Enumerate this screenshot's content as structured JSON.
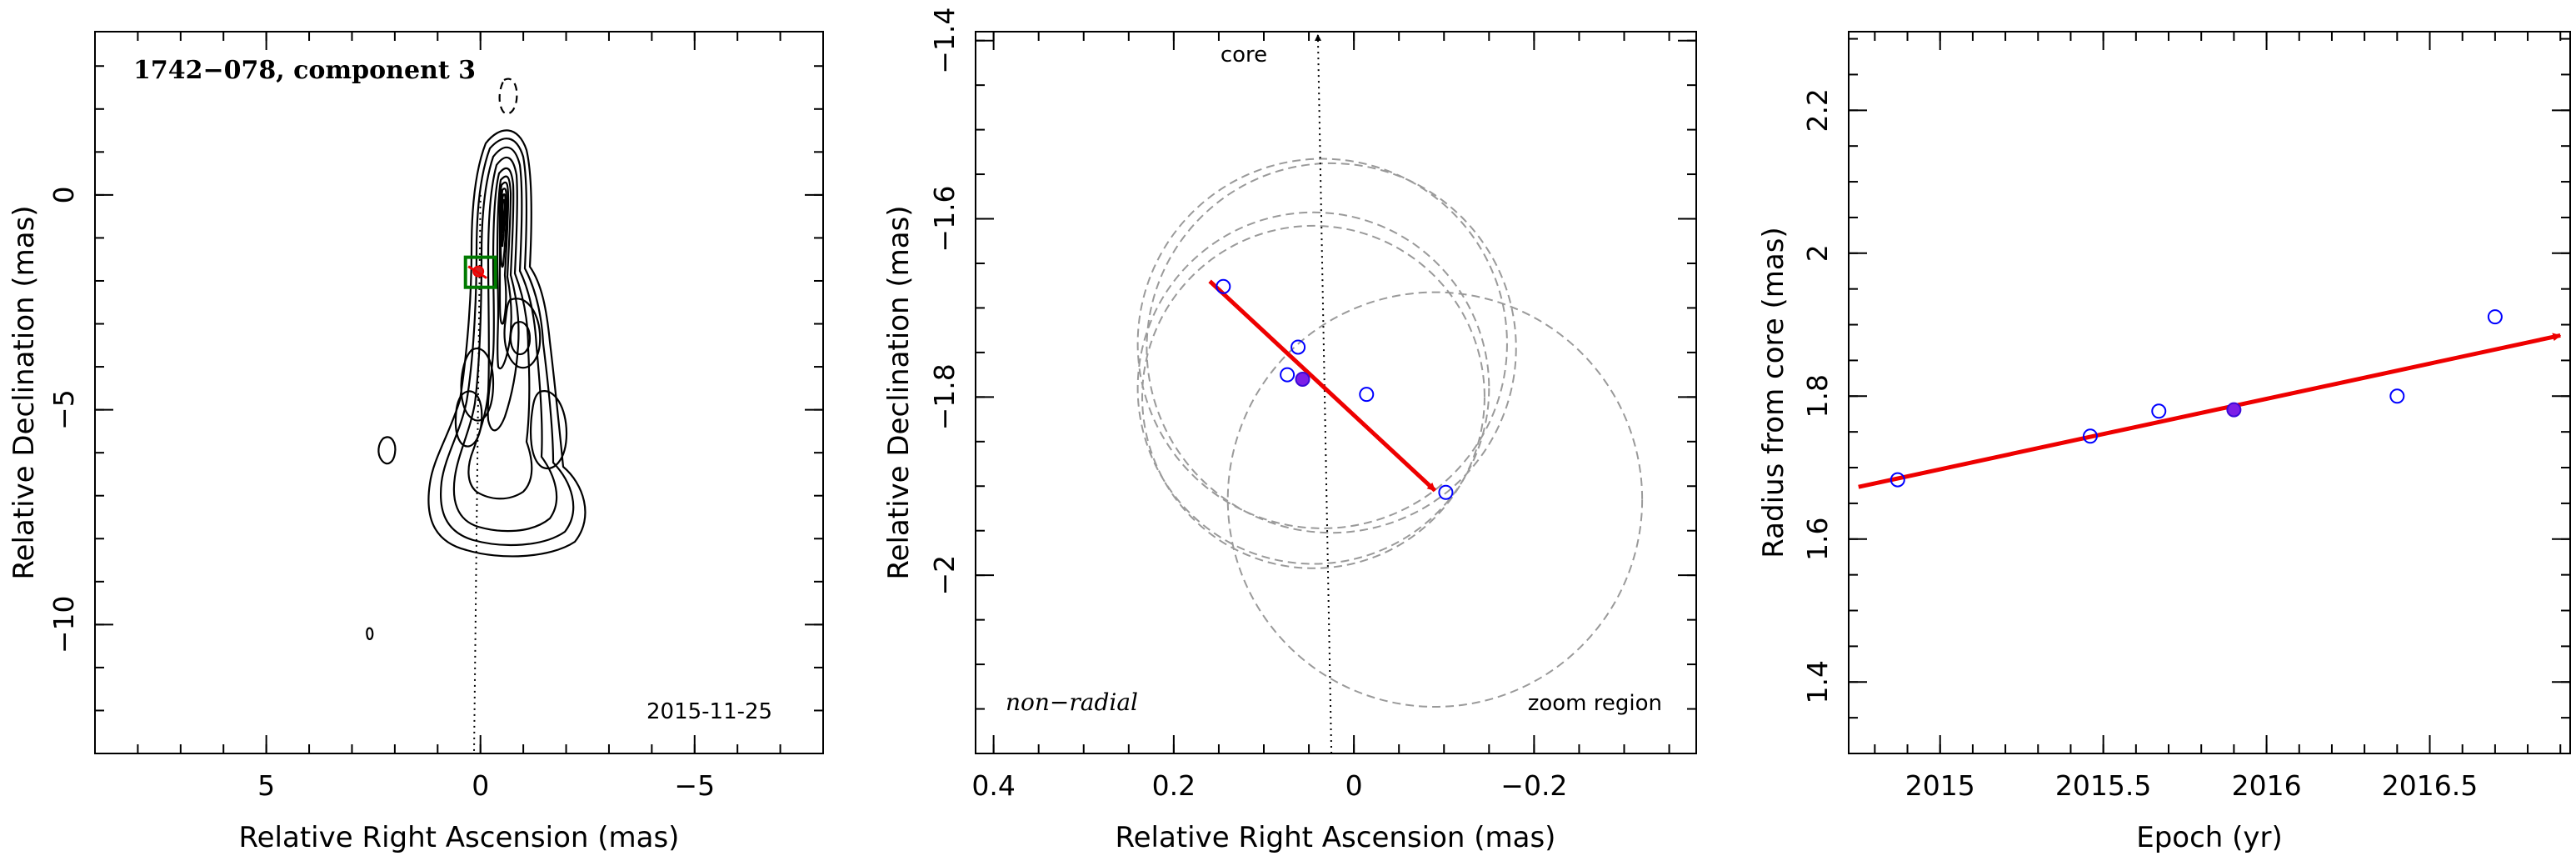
{
  "chart_data": [
    {
      "type": "contour",
      "title": "1742−078, component 3",
      "date_label": "2015-11-25",
      "xlabel": "Relative Right Ascension (mas)",
      "ylabel": "Relative Declination (mas)",
      "xlim": [
        9,
        -8
      ],
      "ylim": [
        -13,
        3.8
      ],
      "xticks": [
        5,
        0,
        -5
      ],
      "xtick_labels": [
        "5",
        "0",
        "−5"
      ],
      "yticks": [
        0,
        -5,
        -10
      ],
      "ytick_labels": [
        "0",
        "−5",
        "−10"
      ],
      "zoom_box": {
        "x": [
          0.35,
          -0.35
        ],
        "y": [
          -2.15,
          -1.45
        ],
        "color": "#007a00"
      },
      "component_point": {
        "x": 0.05,
        "y": -1.78
      },
      "core_line": {
        "from": [
          0,
          0
        ],
        "to": [
          0.15,
          -13
        ]
      }
    },
    {
      "type": "scatter",
      "annotation_core": "core",
      "annotation_motion": "non−radial",
      "annotation_region": "zoom region",
      "xlabel": "Relative Right Ascension (mas)",
      "ylabel": "Relative Declination (mas)",
      "xlim": [
        0.42,
        -0.38
      ],
      "ylim": [
        -2.2,
        -1.39
      ],
      "xticks": [
        0.4,
        0.2,
        0,
        -0.2
      ],
      "xtick_labels": [
        "0.4",
        "0.2",
        "0",
        "−0.2"
      ],
      "yticks": [
        -1.4,
        -1.6,
        -1.8,
        -2.0
      ],
      "ytick_labels": [
        "−1.4",
        "−1.6",
        "−1.8",
        "−2"
      ],
      "points": [
        {
          "x": 0.145,
          "y": -1.676
        },
        {
          "x": 0.062,
          "y": -1.744
        },
        {
          "x": 0.074,
          "y": -1.775
        },
        {
          "x": -0.014,
          "y": -1.797
        },
        {
          "x": -0.102,
          "y": -1.907
        }
      ],
      "highlight": {
        "x": 0.057,
        "y": -1.78
      },
      "circles": [
        {
          "cx": 0.035,
          "cy": -1.74,
          "r": 0.205
        },
        {
          "cx": 0.025,
          "cy": -1.745,
          "r": 0.205
        },
        {
          "cx": 0.045,
          "cy": -1.79,
          "r": 0.195
        },
        {
          "cx": 0.045,
          "cy": -1.8,
          "r": 0.19
        },
        {
          "cx": -0.09,
          "cy": -1.915,
          "r": 0.23
        }
      ],
      "arrow": {
        "from": [
          0.16,
          -1.67
        ],
        "to": [
          -0.09,
          -1.905
        ],
        "color": "#ee0000"
      },
      "core_line": {
        "from": [
          0.025,
          -2.2
        ],
        "to": [
          0.04,
          -1.39
        ]
      }
    },
    {
      "type": "scatter",
      "xlabel": "Epoch (yr)",
      "ylabel": "Radius from core (mas)",
      "xlim": [
        2014.72,
        2016.93
      ],
      "ylim": [
        1.3,
        2.31
      ],
      "xticks": [
        2015,
        2015.5,
        2016,
        2016.5
      ],
      "xtick_labels": [
        "2015",
        "2015.5",
        "2016",
        "2016.5"
      ],
      "yticks": [
        1.4,
        1.6,
        1.8,
        2.0,
        2.2
      ],
      "ytick_labels": [
        "1.4",
        "1.6",
        "1.8",
        "2",
        "2.2"
      ],
      "points": [
        {
          "x": 2014.87,
          "y": 1.683
        },
        {
          "x": 2015.46,
          "y": 1.744
        },
        {
          "x": 2015.67,
          "y": 1.779
        },
        {
          "x": 2016.4,
          "y": 1.8
        },
        {
          "x": 2016.7,
          "y": 1.911
        }
      ],
      "highlight": {
        "x": 2015.9,
        "y": 1.781
      },
      "arrow": {
        "from": [
          2014.75,
          1.673
        ],
        "to": [
          2016.9,
          1.885
        ],
        "color": "#ee0000"
      }
    }
  ]
}
